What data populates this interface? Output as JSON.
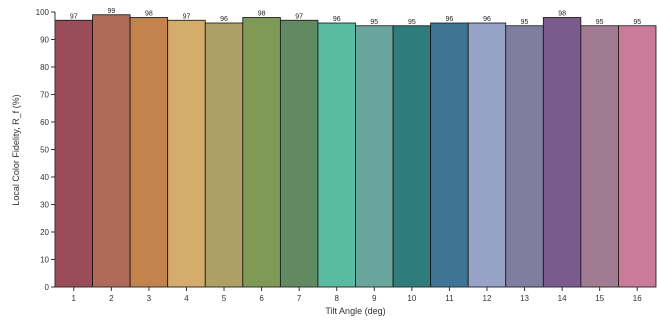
{
  "chart_data": {
    "type": "bar",
    "categories": [
      "1",
      "2",
      "3",
      "4",
      "5",
      "6",
      "7",
      "8",
      "9",
      "10",
      "11",
      "12",
      "13",
      "14",
      "15",
      "16"
    ],
    "values": [
      97,
      99,
      98,
      97,
      96,
      98,
      97,
      96,
      95,
      95,
      96,
      96,
      95,
      98,
      95,
      95
    ],
    "labels": [
      "97",
      "99",
      "98",
      "97",
      "96",
      "98",
      "97",
      "96",
      "95",
      "95",
      "96",
      "96",
      "95",
      "98",
      "95",
      "95"
    ],
    "colors": [
      "#9a4c58",
      "#b06a58",
      "#c3834d",
      "#d4ad6c",
      "#ad9f66",
      "#7f9a57",
      "#628a62",
      "#58bba2",
      "#6aa59d",
      "#2f7c7c",
      "#3f7494",
      "#97a2c7",
      "#807ea0",
      "#7b5b8d",
      "#a17b92",
      "#c97b99"
    ],
    "title": "",
    "xlabel": "Tilt Angle (deg)",
    "ylabel": "Local Color Fidelity, R_f (%)",
    "ylim": [
      0,
      100
    ],
    "yticks": [
      0,
      10,
      20,
      30,
      40,
      50,
      60,
      70,
      80,
      90,
      100
    ],
    "grid": false,
    "legend": "none"
  }
}
